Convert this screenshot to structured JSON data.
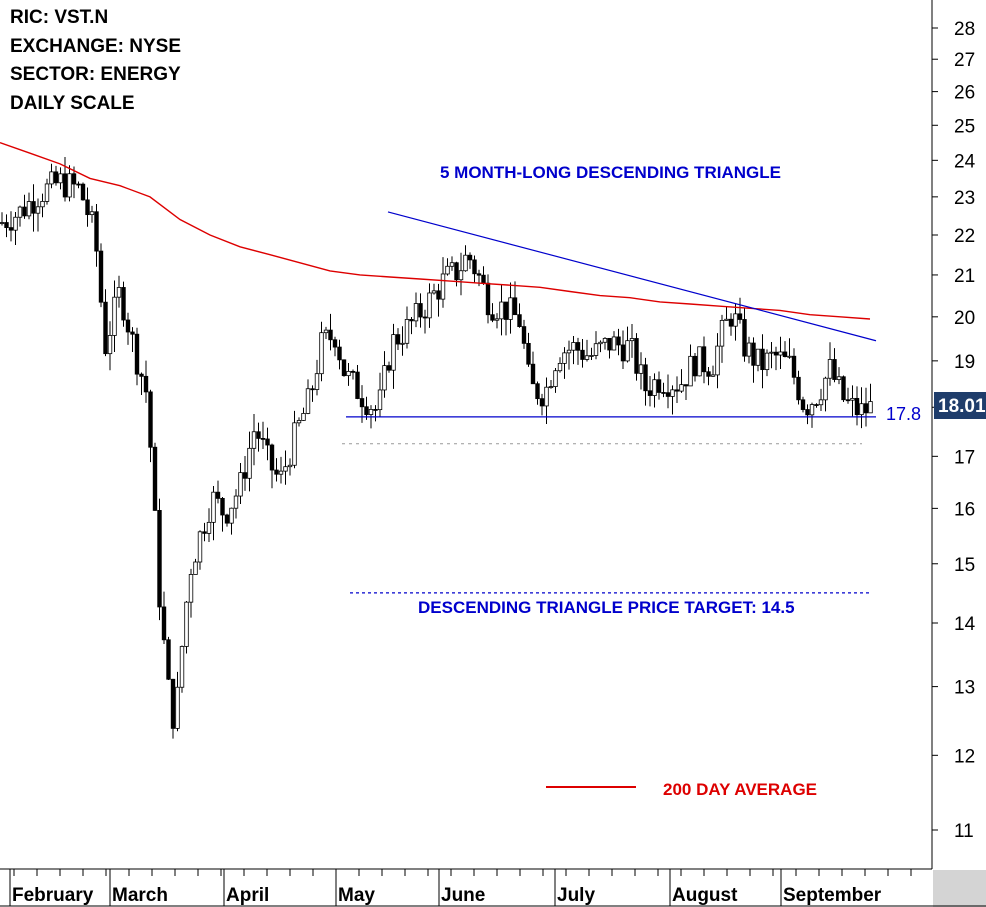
{
  "header": {
    "ric": "RIC: VST.N",
    "exchange": "EXCHANGE: NYSE",
    "sector": "SECTOR: ENERGY",
    "scale": "DAILY SCALE"
  },
  "chart_data": {
    "type": "candlestick",
    "scale": "log",
    "ylim": [
      10.5,
      28.8
    ],
    "y_ticks": [
      11,
      12,
      13,
      14,
      15,
      16,
      17,
      18,
      19,
      20,
      21,
      22,
      23,
      24,
      25,
      26,
      27,
      28
    ],
    "x_tick_labels": [
      "February",
      "March",
      "April",
      "May",
      "June",
      "July",
      "August",
      "September"
    ],
    "grid": false,
    "colors": {
      "up_candle": "#ffffff",
      "down_candle": "#000000",
      "moving_average": "#dd0000",
      "trendline": "#0000cc",
      "last_price_box": "#1f3d6b"
    },
    "annotations": {
      "pattern_title": "5 MONTH-LONG DESCENDING TRIANGLE",
      "price_target": "DESCENDING TRIANGLE PRICE TARGET: 14.5",
      "support_label": "17.8",
      "ma_legend": "200 DAY AVERAGE",
      "last_price": "18.01"
    },
    "levels": {
      "support": 17.8,
      "price_target": 14.5,
      "breakout_threshold": 17.25
    },
    "resistance_line": {
      "start": [
        "May",
        22.6
      ],
      "end": [
        "September",
        19.45
      ]
    },
    "moving_average_200": [
      [
        0,
        24.5
      ],
      [
        30,
        24.2
      ],
      [
        60,
        23.9
      ],
      [
        90,
        23.5
      ],
      [
        120,
        23.3
      ],
      [
        150,
        23.0
      ],
      [
        180,
        22.4
      ],
      [
        210,
        22.0
      ],
      [
        240,
        21.7
      ],
      [
        270,
        21.5
      ],
      [
        300,
        21.3
      ],
      [
        330,
        21.1
      ],
      [
        360,
        21.0
      ],
      [
        390,
        20.95
      ],
      [
        420,
        20.9
      ],
      [
        450,
        20.85
      ],
      [
        480,
        20.8
      ],
      [
        510,
        20.75
      ],
      [
        540,
        20.7
      ],
      [
        570,
        20.6
      ],
      [
        600,
        20.5
      ],
      [
        630,
        20.45
      ],
      [
        660,
        20.35
      ],
      [
        690,
        20.3
      ],
      [
        720,
        20.25
      ],
      [
        750,
        20.2
      ],
      [
        780,
        20.15
      ],
      [
        810,
        20.05
      ],
      [
        840,
        20.0
      ],
      [
        870,
        19.95
      ]
    ]
  }
}
